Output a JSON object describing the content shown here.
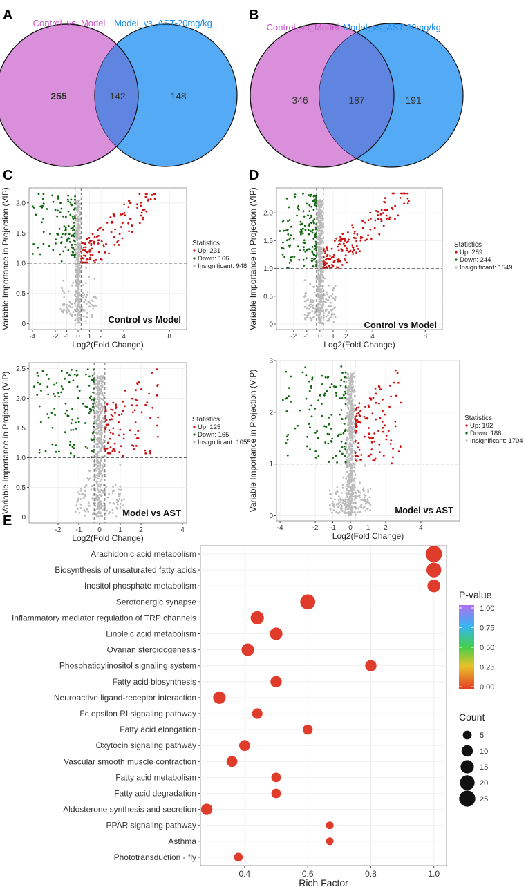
{
  "colors": {
    "venn_left": "#d98fd9",
    "venn_right": "#55aaf5",
    "venn_overlap": "#5f85e0",
    "venn_left_label": "#cc55cc",
    "venn_right_label": "#1f8ff0",
    "up": "#cc1111",
    "down": "#116611",
    "insignificant": "#bbbbbb",
    "grid": "#eeeeee",
    "dot": "#e03c2c"
  },
  "panel_labels": {
    "a": "A",
    "b": "B",
    "c": "C",
    "d": "D",
    "e": "E"
  },
  "venn": [
    {
      "left_label": "Control_vs_Model",
      "right_label": "Model_vs_AST-20mg/kg",
      "left_only": "255",
      "overlap": "142",
      "right_only": "148"
    },
    {
      "left_label": "Control_vs_Model",
      "right_label": "Model_vs_AST-20mg/kg",
      "left_only": "346",
      "overlap": "187",
      "right_only": "191"
    }
  ],
  "chart_data": [
    {
      "type": "scatter",
      "panel": "C-top",
      "title": "Control vs Model",
      "xlabel": "Log2(Fold Change)",
      "ylabel": "Variable Importance in Projection (VIP)",
      "xlim": [
        -4.3,
        9.5
      ],
      "ylim": [
        -0.1,
        2.25
      ],
      "xticks": [
        -4,
        -2,
        -1,
        0,
        1,
        2,
        4,
        8
      ],
      "xtick_labels": [
        "-4",
        "-2",
        "-1",
        "0",
        "1",
        "2",
        "4",
        "8"
      ],
      "yticks": [
        0,
        0.5,
        1.0,
        1.5,
        2.0
      ],
      "ytick_labels": [
        "0",
        "0.5",
        "1.0",
        "1.5",
        "2.0"
      ],
      "vip_threshold": 1.0,
      "fc_thresholds": [
        -0.26,
        0.26
      ],
      "legend_title": "Statistics",
      "legend": [
        "Up: 231",
        "Down: 166",
        "Insignificant: 948"
      ],
      "counts": {
        "up": 231,
        "down": 166,
        "insignificant": 948
      }
    },
    {
      "type": "scatter",
      "panel": "C-bottom",
      "title": "Model vs AST",
      "xlabel": "Log2(Fold Change)",
      "ylabel": "Variable Importance in Projection (VIP)",
      "xlim": [
        -3.4,
        4.2
      ],
      "ylim": [
        -0.1,
        2.6
      ],
      "xticks": [
        -2,
        -1,
        0,
        1,
        2,
        4
      ],
      "xtick_labels": [
        "-2",
        "-1",
        "0",
        "1",
        "2",
        "4"
      ],
      "yticks": [
        0,
        0.5,
        1.0,
        1.5,
        2.0,
        2.5
      ],
      "ytick_labels": [
        "0",
        "0.5",
        "1.0",
        "1.5",
        "2.0",
        "2.5"
      ],
      "vip_threshold": 1.0,
      "fc_thresholds": [
        -0.26,
        0.26
      ],
      "legend_title": "Statistics",
      "legend": [
        "Up: 125",
        "Down: 165",
        "Insignificant: 1055"
      ],
      "counts": {
        "up": 125,
        "down": 165,
        "insignificant": 1055
      }
    },
    {
      "type": "scatter",
      "panel": "D-top",
      "title": "Control vs Model",
      "xlabel": "Log2(Fold Change)",
      "ylabel": "Variable Importance in Projection (VIP)",
      "xlim": [
        -3.3,
        9.3
      ],
      "ylim": [
        -0.1,
        2.45
      ],
      "xticks": [
        -2,
        -1,
        0,
        1,
        2,
        4,
        8
      ],
      "xtick_labels": [
        "-2",
        "-1",
        "0",
        "1",
        "2",
        "4",
        "8"
      ],
      "yticks": [
        0,
        0.5,
        1.0,
        1.5,
        2.0
      ],
      "ytick_labels": [
        "0",
        "0.5",
        "1.0",
        "1.5",
        "2.0"
      ],
      "vip_threshold": 1.0,
      "fc_thresholds": [
        -0.26,
        0.26
      ],
      "legend_title": "Statistics",
      "legend": [
        "Up: 289",
        "Down: 244",
        "Insignificant: 1549"
      ],
      "counts": {
        "up": 289,
        "down": 244,
        "insignificant": 1549
      }
    },
    {
      "type": "scatter",
      "panel": "D-bottom",
      "title": "Model vs AST",
      "xlabel": "Log2(Fold Change)",
      "ylabel": "Variable Importance in Projection (VIP)",
      "xlim": [
        -4.2,
        6.2
      ],
      "ylim": [
        -0.1,
        3.0
      ],
      "xticks": [
        -4,
        -2,
        -1,
        0,
        1,
        2,
        4
      ],
      "xtick_labels": [
        "-4",
        "-2",
        "-1",
        "0",
        "1",
        "2",
        "4"
      ],
      "yticks": [
        0,
        1,
        2,
        3
      ],
      "ytick_labels": [
        "0",
        "1",
        "2",
        "3"
      ],
      "vip_threshold": 1.0,
      "fc_thresholds": [
        -0.26,
        0.26
      ],
      "legend_title": "Statistics",
      "legend": [
        "Up: 192",
        "Down: 186",
        "Insignificant: 1704"
      ],
      "counts": {
        "up": 192,
        "down": 186,
        "insignificant": 1704
      }
    },
    {
      "type": "scatter",
      "panel": "E",
      "title": "",
      "xlabel": "Rich Factor",
      "ylabel": "",
      "xlim": [
        0.26,
        1.04
      ],
      "xticks": [
        0.4,
        0.6,
        0.8,
        1.0
      ],
      "xtick_labels": [
        "0.4",
        "0.6",
        "0.8",
        "1.0"
      ],
      "pathways": [
        {
          "name": "Arachidonic acid metabolism",
          "rich_factor": 1.0,
          "count": 26,
          "pvalue": 0.0
        },
        {
          "name": "Biosynthesis of unsaturated fatty acids",
          "rich_factor": 1.0,
          "count": 20,
          "pvalue": 0.0
        },
        {
          "name": "Inositol phosphate metabolism",
          "rich_factor": 1.0,
          "count": 14,
          "pvalue": 0.0
        },
        {
          "name": "Serotonergic synapse",
          "rich_factor": 0.6,
          "count": 21,
          "pvalue": 0.0
        },
        {
          "name": "Inflammatory mediator regulation of TRP channels",
          "rich_factor": 0.44,
          "count": 15,
          "pvalue": 0.0
        },
        {
          "name": "Linoleic acid metabolism",
          "rich_factor": 0.5,
          "count": 13,
          "pvalue": 0.0
        },
        {
          "name": "Ovarian steroidogenesis",
          "rich_factor": 0.41,
          "count": 13,
          "pvalue": 0.0
        },
        {
          "name": "Phosphatidylinositol signaling system",
          "rich_factor": 0.8,
          "count": 10,
          "pvalue": 0.0
        },
        {
          "name": "Fatty acid biosynthesis",
          "rich_factor": 0.5,
          "count": 10,
          "pvalue": 0.0
        },
        {
          "name": "Neuroactive ligand-receptor interaction",
          "rich_factor": 0.32,
          "count": 13,
          "pvalue": 0.0
        },
        {
          "name": "Fc epsilon RI signaling pathway",
          "rich_factor": 0.44,
          "count": 8,
          "pvalue": 0.0
        },
        {
          "name": "Fatty acid elongation",
          "rich_factor": 0.6,
          "count": 7,
          "pvalue": 0.0
        },
        {
          "name": "Oxytocin signaling pathway",
          "rich_factor": 0.4,
          "count": 9,
          "pvalue": 0.0
        },
        {
          "name": "Vascular smooth muscle contraction",
          "rich_factor": 0.36,
          "count": 9,
          "pvalue": 0.0
        },
        {
          "name": "Fatty acid metabolism",
          "rich_factor": 0.5,
          "count": 6,
          "pvalue": 0.0
        },
        {
          "name": "Fatty acid degradation",
          "rich_factor": 0.5,
          "count": 6,
          "pvalue": 0.0
        },
        {
          "name": "Aldosterone synthesis and secretion",
          "rich_factor": 0.28,
          "count": 10,
          "pvalue": 0.0
        },
        {
          "name": "PPAR signaling pathway",
          "rich_factor": 0.67,
          "count": 3,
          "pvalue": 0.0
        },
        {
          "name": "Asthma",
          "rich_factor": 0.67,
          "count": 3,
          "pvalue": 0.0
        },
        {
          "name": "Phototransduction - fly",
          "rich_factor": 0.38,
          "count": 5,
          "pvalue": 0.0
        }
      ],
      "pvalue_legend": {
        "title": "P-value",
        "ticks": [
          "1.00",
          "0.75",
          "0.50",
          "0.25",
          "0.00"
        ]
      },
      "count_legend": {
        "title": "Count",
        "values": [
          5,
          10,
          15,
          20,
          25
        ],
        "labels": [
          "5",
          "10",
          "15",
          "20",
          "25"
        ]
      }
    }
  ]
}
